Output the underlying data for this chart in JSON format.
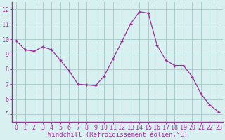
{
  "x": [
    0,
    1,
    2,
    3,
    4,
    5,
    6,
    7,
    8,
    9,
    10,
    11,
    12,
    13,
    14,
    15,
    16,
    17,
    18,
    19,
    20,
    21,
    22,
    23
  ],
  "y": [
    9.9,
    9.3,
    9.2,
    9.5,
    9.3,
    8.6,
    7.9,
    7.0,
    6.95,
    6.9,
    7.55,
    8.7,
    9.85,
    11.05,
    11.85,
    11.75,
    9.6,
    8.6,
    8.25,
    8.25,
    7.5,
    6.35,
    5.6,
    5.15
  ],
  "line_color": "#993399",
  "marker": "+",
  "marker_size": 3.5,
  "bg_color": "#d8f0f0",
  "grid_color": "#aacccc",
  "axis_color": "#993399",
  "xlabel": "Windchill (Refroidissement éolien,°C)",
  "xlim": [
    -0.5,
    23.5
  ],
  "ylim": [
    4.5,
    12.5
  ],
  "yticks": [
    5,
    6,
    7,
    8,
    9,
    10,
    11,
    12
  ],
  "xticks": [
    0,
    1,
    2,
    3,
    4,
    5,
    6,
    7,
    8,
    9,
    10,
    11,
    12,
    13,
    14,
    15,
    16,
    17,
    18,
    19,
    20,
    21,
    22,
    23
  ],
  "xlabel_fontsize": 6.5,
  "tick_fontsize": 6.0
}
